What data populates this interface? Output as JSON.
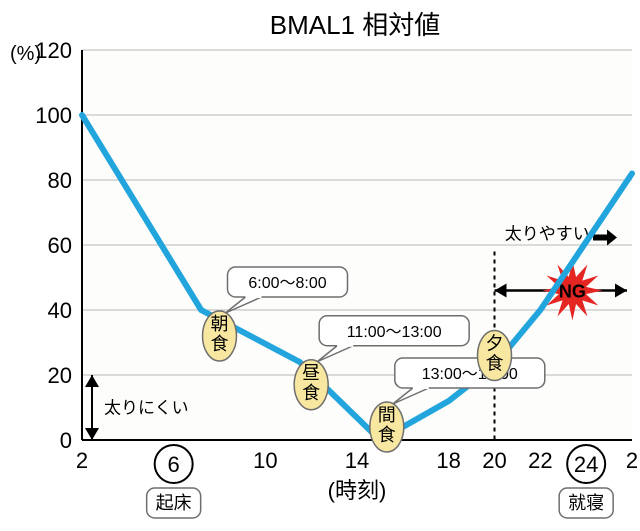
{
  "title": "BMAL1 相対値",
  "title_fontsize": 26,
  "chart": {
    "type": "line",
    "y_unit_label": "(%)",
    "x_axis_title": "(時刻)",
    "xlim": [
      2,
      26
    ],
    "ylim": [
      0,
      120
    ],
    "x_ticks": [
      2,
      6,
      10,
      14,
      18,
      20,
      22,
      24,
      26
    ],
    "x_tick_labels": [
      "2",
      "6",
      "10",
      "14",
      "18",
      "20",
      "22",
      "24",
      "2"
    ],
    "y_ticks": [
      0,
      20,
      40,
      60,
      80,
      100,
      120
    ],
    "series": {
      "color": "#22a5dd",
      "line_width": 6,
      "points": [
        {
          "x": 2,
          "y": 100
        },
        {
          "x": 7.2,
          "y": 40
        },
        {
          "x": 11.5,
          "y": 24
        },
        {
          "x": 15,
          "y": 0
        },
        {
          "x": 18,
          "y": 12
        },
        {
          "x": 20,
          "y": 23
        },
        {
          "x": 22,
          "y": 40
        },
        {
          "x": 26,
          "y": 82
        }
      ]
    },
    "plot_bg": "#fdfdfb",
    "axis_color": "#000000",
    "grid_color": "#b7b7b7",
    "callouts": [
      {
        "id": "breakfast",
        "label": "朝食",
        "bubble": "6:00～8:00",
        "at_x": 8,
        "at_y": 32
      },
      {
        "id": "lunch",
        "label": "昼食",
        "bubble": "11:00～13:00",
        "at_x": 12,
        "at_y": 17
      },
      {
        "id": "snack",
        "label": "間食",
        "bubble": "13:00～15:00",
        "at_x": 15.3,
        "at_y": 4
      },
      {
        "id": "dinner",
        "label": "夕食",
        "bubble": "",
        "at_x": 20,
        "at_y": 26
      }
    ],
    "left_annot_label": "太りにくい",
    "right_annot_label": "太りやすい",
    "ng_label": "NG",
    "ng_burst_color": "#e52521",
    "circle_ticks": [
      {
        "value": 6,
        "label": "6",
        "under_label": "起床"
      },
      {
        "value": 24,
        "label": "24",
        "under_label": "就寝"
      }
    ],
    "vline_x": 20,
    "callout_fill": "#f7e7a0",
    "callout_stroke": "#6e6e6e",
    "bubble_fill": "#ffffff",
    "tick_fontsize": 22,
    "label_fontsize": 18
  }
}
